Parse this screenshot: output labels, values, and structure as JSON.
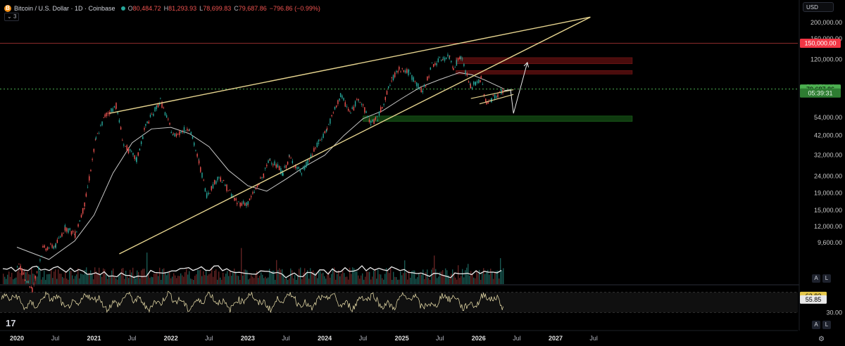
{
  "header": {
    "symbol": "Bitcoin / U.S. Dollar · 1D · Coinbase",
    "coin_icon": "B",
    "o_label": "O",
    "o": "80,484.72",
    "h_label": "H",
    "h": "81,293.93",
    "l_label": "L",
    "l": "78,699.83",
    "c_label": "C",
    "c": "79,687.86",
    "change": "−796.86 (−0.99%)",
    "indicator_count": "3"
  },
  "currency": "USD",
  "scale_buttons": {
    "auto": "A",
    "log": "L"
  },
  "brand_icon": "tradingview-logo-icon",
  "colors": {
    "candle_up": "#26a69a",
    "candle_down": "#ef5350",
    "trendline": "#e6d48f",
    "ma": "#c8c8c8",
    "rsi": "#f2e6b0",
    "resistance_zone": "#4a0c0c",
    "support_zone": "#0f3a0f",
    "level_150k": "#f23645",
    "price_tag": "#4caf50"
  },
  "chart_data": {
    "type": "line",
    "title": "",
    "x_ticks": [
      "2020",
      "Jul",
      "2021",
      "Jul",
      "2022",
      "Jul",
      "2023",
      "Jul",
      "2024",
      "Jul",
      "2025",
      "Jul",
      "2026",
      "Jul",
      "2027",
      "Jul"
    ],
    "x_tick_dates": [
      "2020-01-01",
      "2020-07-01",
      "2021-01-01",
      "2021-07-01",
      "2022-01-01",
      "2022-07-01",
      "2023-01-01",
      "2023-07-01",
      "2024-01-01",
      "2024-07-01",
      "2025-01-01",
      "2025-07-01",
      "2026-01-01",
      "2026-07-01",
      "2027-01-01",
      "2027-07-01"
    ],
    "y_scale": "log",
    "y_ticks": [
      "200,000.00",
      "160,000.00",
      "120,000.00",
      "54,000.00",
      "42,000.00",
      "32,000.00",
      "24,000.00",
      "19,000.00",
      "15,000.00",
      "12,000.00",
      "9,600.00"
    ],
    "y_tick_values": [
      200000,
      160000,
      120000,
      54000,
      42000,
      32000,
      24000,
      19000,
      15000,
      12000,
      9600
    ],
    "price_labels": [
      {
        "label": "150,000.00",
        "value": 150000,
        "style": "level"
      },
      {
        "label": "82,270.14",
        "value": 82270.14,
        "style": "line"
      },
      {
        "label": "79,687.86",
        "value": 79687.86,
        "style": "price"
      },
      {
        "label": "05:39:31",
        "value": 75500,
        "style": "countdown"
      }
    ],
    "price_series": [
      [
        "2020-01-01",
        7200
      ],
      [
        "2020-03-12",
        5000
      ],
      [
        "2020-05-01",
        8800
      ],
      [
        "2020-07-01",
        9200
      ],
      [
        "2020-08-15",
        11800
      ],
      [
        "2020-10-01",
        10700
      ],
      [
        "2020-11-15",
        16000
      ],
      [
        "2021-01-08",
        40000
      ],
      [
        "2021-02-20",
        55000
      ],
      [
        "2021-04-14",
        63500
      ],
      [
        "2021-05-20",
        37000
      ],
      [
        "2021-07-20",
        30000
      ],
      [
        "2021-09-01",
        48000
      ],
      [
        "2021-11-10",
        68000
      ],
      [
        "2022-01-10",
        42000
      ],
      [
        "2022-03-28",
        47000
      ],
      [
        "2022-05-12",
        29000
      ],
      [
        "2022-06-18",
        18500
      ],
      [
        "2022-08-15",
        24000
      ],
      [
        "2022-11-09",
        16500
      ],
      [
        "2022-12-31",
        16500
      ],
      [
        "2023-03-15",
        24500
      ],
      [
        "2023-04-14",
        30500
      ],
      [
        "2023-06-15",
        25000
      ],
      [
        "2023-07-15",
        31000
      ],
      [
        "2023-09-11",
        25000
      ],
      [
        "2023-12-01",
        38000
      ],
      [
        "2024-01-10",
        46000
      ],
      [
        "2024-03-14",
        73000
      ],
      [
        "2024-05-01",
        57000
      ],
      [
        "2024-06-07",
        71000
      ],
      [
        "2024-08-05",
        50000
      ],
      [
        "2024-09-06",
        53000
      ],
      [
        "2024-11-12",
        90000
      ],
      [
        "2024-12-17",
        107000
      ],
      [
        "2025-02-01",
        100000
      ],
      [
        "2025-04-08",
        76000
      ],
      [
        "2025-05-22",
        111000
      ],
      [
        "2025-07-14",
        122000
      ],
      [
        "2025-08-14",
        124000
      ],
      [
        "2025-09-01",
        108000
      ],
      [
        "2025-10-06",
        126000
      ],
      [
        "2025-11-21",
        82000
      ],
      [
        "2025-12-15",
        86000
      ],
      [
        "2026-01-10",
        92000
      ],
      [
        "2026-02-05",
        65000
      ],
      [
        "2026-03-01",
        70000
      ],
      [
        "2026-04-01",
        74000
      ],
      [
        "2026-04-30",
        79687.86
      ]
    ],
    "ma_series": [
      [
        "2020-01-01",
        9000
      ],
      [
        "2020-06-01",
        7600
      ],
      [
        "2020-10-01",
        9800
      ],
      [
        "2021-01-01",
        14000
      ],
      [
        "2021-04-01",
        25000
      ],
      [
        "2021-07-01",
        38000
      ],
      [
        "2021-10-01",
        46000
      ],
      [
        "2022-01-01",
        47000
      ],
      [
        "2022-04-01",
        43000
      ],
      [
        "2022-07-01",
        36000
      ],
      [
        "2022-10-01",
        26000
      ],
      [
        "2023-01-01",
        21000
      ],
      [
        "2023-04-01",
        19500
      ],
      [
        "2023-07-01",
        23000
      ],
      [
        "2023-10-01",
        27500
      ],
      [
        "2024-01-01",
        32000
      ],
      [
        "2024-04-01",
        42000
      ],
      [
        "2024-07-01",
        53000
      ],
      [
        "2024-10-01",
        59000
      ],
      [
        "2025-01-01",
        70000
      ],
      [
        "2025-04-01",
        82000
      ],
      [
        "2025-07-01",
        91000
      ],
      [
        "2025-10-01",
        100000
      ],
      [
        "2025-12-01",
        97000
      ],
      [
        "2026-02-01",
        90000
      ],
      [
        "2026-04-30",
        80000
      ]
    ],
    "trendlines": [
      {
        "from": [
          "2021-03-15",
          57000
        ],
        "to": [
          "2027-06-15",
          215000
        ]
      },
      {
        "from": [
          "2021-05-01",
          8200
        ],
        "to": [
          "2027-06-15",
          215000
        ]
      },
      {
        "from": [
          "2025-11-25",
          70000
        ],
        "to": [
          "2026-06-15",
          79000
        ]
      },
      {
        "from": [
          "2026-01-05",
          65000
        ],
        "to": [
          "2026-06-15",
          74000
        ]
      }
    ],
    "projection_path": [
      [
        "2026-05-01",
        78000
      ],
      [
        "2026-06-01",
        79000
      ],
      [
        "2026-06-15",
        57000
      ],
      [
        "2026-08-20",
        115000
      ]
    ],
    "zones": [
      {
        "type": "resistance",
        "from": "2025-09-15",
        "to": "2027-12-31",
        "low": 113000,
        "high": 123000
      },
      {
        "type": "resistance",
        "from": "2025-09-15",
        "to": "2027-12-31",
        "low": 98000,
        "high": 103000
      },
      {
        "type": "support",
        "from": "2024-07-01",
        "to": "2027-12-31",
        "low": 51000,
        "high": 55000
      }
    ],
    "rsi": {
      "ticks": [
        "30.00"
      ],
      "tick_values": [
        30
      ],
      "bands": [
        30,
        70
      ],
      "values": [
        "62.82",
        "55.85"
      ],
      "value_numbers": [
        62.82,
        55.85
      ],
      "range": [
        15,
        85
      ]
    },
    "grid": false,
    "legend": "none"
  }
}
